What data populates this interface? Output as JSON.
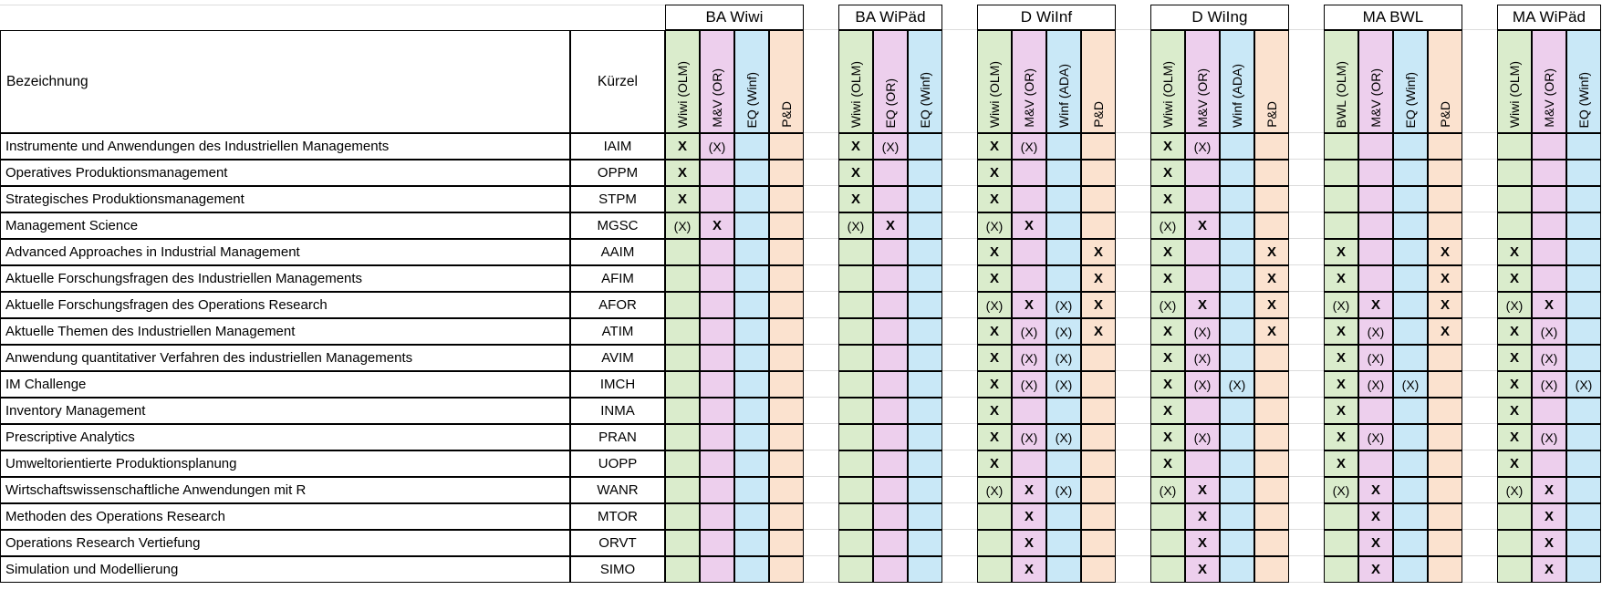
{
  "table": {
    "col1_header": "Bezeichnung",
    "col2_header": "Kürzel",
    "mark_full": "X",
    "mark_partial": "(X)",
    "column_colors": [
      "#daeccc",
      "#edcfed",
      "#c9e8f7",
      "#fbe2cf"
    ],
    "grid_line_color": "#dcdcdc",
    "border_color": "#000000",
    "groups": [
      {
        "label": "BA Wiwi",
        "columns": [
          "Wiwi (OLM)",
          "M&V (OR)",
          "EQ (Winf)",
          "P&D"
        ]
      },
      {
        "label": "BA WiPäd",
        "columns": [
          "Wiwi (OLM)",
          "EQ (OR)",
          "EQ (Winf)"
        ]
      },
      {
        "label": "D WiInf",
        "columns": [
          "Wiwi (OLM)",
          "M&V (OR)",
          "Winf (ADA)",
          "P&D"
        ]
      },
      {
        "label": "D WiIng",
        "columns": [
          "Wiwi (OLM)",
          "M&V (OR)",
          "Winf (ADA)",
          "P&D"
        ]
      },
      {
        "label": "MA BWL",
        "columns": [
          "BWL (OLM)",
          "M&V (OR)",
          "EQ (Winf)",
          "P&D"
        ]
      },
      {
        "label": "MA WiPäd",
        "columns": [
          "Wiwi (OLM)",
          "M&V (OR)",
          "EQ (Winf)"
        ]
      }
    ],
    "rows": [
      {
        "name": "Instrumente und Anwendungen des Industriellen Managements",
        "code": "IAIM",
        "marks": [
          [
            "X",
            "(X)",
            "",
            ""
          ],
          [
            "X",
            "(X)",
            ""
          ],
          [
            "X",
            "(X)",
            "",
            ""
          ],
          [
            "X",
            "(X)",
            "",
            ""
          ],
          [
            "",
            "",
            "",
            ""
          ],
          [
            "",
            "",
            ""
          ]
        ]
      },
      {
        "name": "Operatives Produktionsmanagement",
        "code": "OPPM",
        "marks": [
          [
            "X",
            "",
            "",
            ""
          ],
          [
            "X",
            "",
            ""
          ],
          [
            "X",
            "",
            "",
            ""
          ],
          [
            "X",
            "",
            "",
            ""
          ],
          [
            "",
            "",
            "",
            ""
          ],
          [
            "",
            "",
            ""
          ]
        ]
      },
      {
        "name": "Strategisches Produktionsmanagement",
        "code": "STPM",
        "marks": [
          [
            "X",
            "",
            "",
            ""
          ],
          [
            "X",
            "",
            ""
          ],
          [
            "X",
            "",
            "",
            ""
          ],
          [
            "X",
            "",
            "",
            ""
          ],
          [
            "",
            "",
            "",
            ""
          ],
          [
            "",
            "",
            ""
          ]
        ]
      },
      {
        "name": "Management Science",
        "code": "MGSC",
        "marks": [
          [
            "(X)",
            "X",
            "",
            ""
          ],
          [
            "(X)",
            "X",
            ""
          ],
          [
            "(X)",
            "X",
            "",
            ""
          ],
          [
            "(X)",
            "X",
            "",
            ""
          ],
          [
            "",
            "",
            "",
            ""
          ],
          [
            "",
            "",
            ""
          ]
        ]
      },
      {
        "name": "Advanced Approaches in Industrial Management",
        "code": "AAIM",
        "marks": [
          [
            "",
            "",
            "",
            ""
          ],
          [
            "",
            "",
            ""
          ],
          [
            "X",
            "",
            "",
            "X"
          ],
          [
            "X",
            "",
            "",
            "X"
          ],
          [
            "X",
            "",
            "",
            "X"
          ],
          [
            "X",
            "",
            ""
          ]
        ]
      },
      {
        "name": "Aktuelle Forschungsfragen des Industriellen Managements",
        "code": "AFIM",
        "marks": [
          [
            "",
            "",
            "",
            ""
          ],
          [
            "",
            "",
            ""
          ],
          [
            "X",
            "",
            "",
            "X"
          ],
          [
            "X",
            "",
            "",
            "X"
          ],
          [
            "X",
            "",
            "",
            "X"
          ],
          [
            "X",
            "",
            ""
          ]
        ]
      },
      {
        "name": "Aktuelle Forschungsfragen des Operations Research",
        "code": "AFOR",
        "marks": [
          [
            "",
            "",
            "",
            ""
          ],
          [
            "",
            "",
            ""
          ],
          [
            "(X)",
            "X",
            "(X)",
            "X"
          ],
          [
            "(X)",
            "X",
            "",
            "X"
          ],
          [
            "(X)",
            "X",
            "",
            "X"
          ],
          [
            "(X)",
            "X",
            ""
          ]
        ]
      },
      {
        "name": "Aktuelle Themen des Industriellen Management",
        "code": "ATIM",
        "marks": [
          [
            "",
            "",
            "",
            ""
          ],
          [
            "",
            "",
            ""
          ],
          [
            "X",
            "(X)",
            "(X)",
            "X"
          ],
          [
            "X",
            "(X)",
            "",
            "X"
          ],
          [
            "X",
            "(X)",
            "",
            "X"
          ],
          [
            "X",
            "(X)",
            ""
          ]
        ]
      },
      {
        "name": "Anwendung quantitativer Verfahren des industriellen Managements",
        "code": "AVIM",
        "marks": [
          [
            "",
            "",
            "",
            ""
          ],
          [
            "",
            "",
            ""
          ],
          [
            "X",
            "(X)",
            "(X)",
            ""
          ],
          [
            "X",
            "(X)",
            "",
            ""
          ],
          [
            "X",
            "(X)",
            "",
            ""
          ],
          [
            "X",
            "(X)",
            ""
          ]
        ]
      },
      {
        "name": "IM Challenge",
        "code": "IMCH",
        "marks": [
          [
            "",
            "",
            "",
            ""
          ],
          [
            "",
            "",
            ""
          ],
          [
            "X",
            "(X)",
            "(X)",
            ""
          ],
          [
            "X",
            "(X)",
            "(X)",
            ""
          ],
          [
            "X",
            "(X)",
            "(X)",
            ""
          ],
          [
            "X",
            "(X)",
            "(X)"
          ]
        ]
      },
      {
        "name": "Inventory Management",
        "code": "INMA",
        "marks": [
          [
            "",
            "",
            "",
            ""
          ],
          [
            "",
            "",
            ""
          ],
          [
            "X",
            "",
            "",
            ""
          ],
          [
            "X",
            "",
            "",
            ""
          ],
          [
            "X",
            "",
            "",
            ""
          ],
          [
            "X",
            "",
            ""
          ]
        ]
      },
      {
        "name": "Prescriptive Analytics",
        "code": "PRAN",
        "marks": [
          [
            "",
            "",
            "",
            ""
          ],
          [
            "",
            "",
            ""
          ],
          [
            "X",
            "(X)",
            "(X)",
            ""
          ],
          [
            "X",
            "(X)",
            "",
            ""
          ],
          [
            "X",
            "(X)",
            "",
            ""
          ],
          [
            "X",
            "(X)",
            ""
          ]
        ]
      },
      {
        "name": "Umweltorientierte Produktionsplanung",
        "code": "UOPP",
        "marks": [
          [
            "",
            "",
            "",
            ""
          ],
          [
            "",
            "",
            ""
          ],
          [
            "X",
            "",
            "",
            ""
          ],
          [
            "X",
            "",
            "",
            ""
          ],
          [
            "X",
            "",
            "",
            ""
          ],
          [
            "X",
            "",
            ""
          ]
        ]
      },
      {
        "name": "Wirtschaftswissenschaftliche Anwendungen mit R",
        "code": "WANR",
        "marks": [
          [
            "",
            "",
            "",
            ""
          ],
          [
            "",
            "",
            ""
          ],
          [
            "(X)",
            "X",
            "(X)",
            ""
          ],
          [
            "(X)",
            "X",
            "",
            ""
          ],
          [
            "(X)",
            "X",
            "",
            ""
          ],
          [
            "(X)",
            "X",
            ""
          ]
        ]
      },
      {
        "name": "Methoden des Operations Research",
        "code": "MTOR",
        "marks": [
          [
            "",
            "",
            "",
            ""
          ],
          [
            "",
            "",
            ""
          ],
          [
            "",
            "X",
            "",
            ""
          ],
          [
            "",
            "X",
            "",
            ""
          ],
          [
            "",
            "X",
            "",
            ""
          ],
          [
            "",
            "X",
            ""
          ]
        ]
      },
      {
        "name": "Operations Research Vertiefung",
        "code": "ORVT",
        "marks": [
          [
            "",
            "",
            "",
            ""
          ],
          [
            "",
            "",
            ""
          ],
          [
            "",
            "X",
            "",
            ""
          ],
          [
            "",
            "X",
            "",
            ""
          ],
          [
            "",
            "X",
            "",
            ""
          ],
          [
            "",
            "X",
            ""
          ]
        ]
      },
      {
        "name": "Simulation und Modellierung",
        "code": "SIMO",
        "marks": [
          [
            "",
            "",
            "",
            ""
          ],
          [
            "",
            "",
            ""
          ],
          [
            "",
            "X",
            "",
            ""
          ],
          [
            "",
            "X",
            "",
            ""
          ],
          [
            "",
            "X",
            "",
            ""
          ],
          [
            "",
            "X",
            ""
          ]
        ]
      }
    ]
  }
}
